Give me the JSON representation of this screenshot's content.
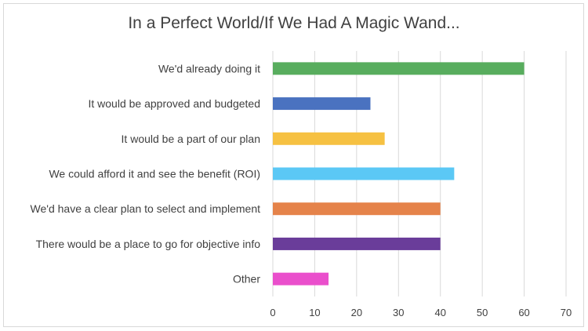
{
  "chart_data": {
    "type": "bar",
    "orientation": "horizontal",
    "title": "In a Perfect World/If We Had A Magic Wand...",
    "categories": [
      "We'd already doing it",
      "It would be approved and budgeted",
      "It would be a part of our plan",
      "We could afford it and see the benefit (ROI)",
      "We'd have a clear plan to select and implement",
      "There would be a place to go for objective info",
      "Other"
    ],
    "values": [
      60,
      23.3,
      26.7,
      43.3,
      40,
      40,
      13.3
    ],
    "colors": [
      "#58ad5e",
      "#4a72c0",
      "#f6c142",
      "#5bc8f5",
      "#e5834a",
      "#6a3d9a",
      "#ea4fcc"
    ],
    "xlim": [
      0,
      70
    ],
    "xticks": [
      "0",
      "10",
      "20",
      "30",
      "40",
      "50",
      "60",
      "70"
    ],
    "grid": true,
    "legend": "none"
  }
}
